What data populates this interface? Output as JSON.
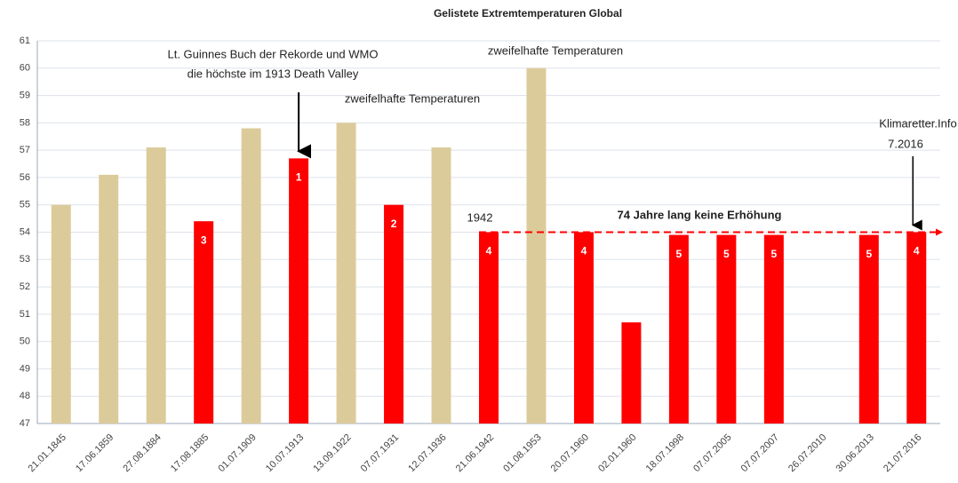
{
  "chart_data": {
    "type": "bar",
    "title": "Gelistete Extremtemperaturen Global",
    "categories": [
      "21.01.1845",
      "17.06.1859",
      "27.08.1884",
      "17.08.1885",
      "01.07.1909",
      "10.07.1913",
      "13.09.1922",
      "07.07.1931",
      "12.07.1936",
      "21.06.1942",
      "01.08.1953",
      "20.07.1960",
      "02.01.1960",
      "18.07.1998",
      "07.07.2005",
      "07.07.2007",
      "26.07.2010",
      "30.06.2013",
      "21.07.2016"
    ],
    "series": [
      {
        "color": "#dccb9a",
        "values": [
          55,
          56.1,
          57.1,
          null,
          57.8,
          null,
          58,
          null,
          57.1,
          null,
          60,
          null,
          null,
          null,
          null,
          null,
          null,
          null,
          null
        ]
      },
      {
        "color": "#ff0000",
        "values": [
          null,
          null,
          null,
          54.4,
          null,
          56.7,
          null,
          55,
          null,
          54,
          null,
          54,
          50.7,
          53.9,
          53.9,
          53.9,
          null,
          53.9,
          54
        ],
        "bar_labels": [
          null,
          null,
          null,
          "3",
          null,
          "1",
          null,
          "2",
          null,
          "4",
          null,
          "4",
          null,
          "5",
          "5",
          "5",
          null,
          "5",
          "4"
        ]
      }
    ],
    "ylim": [
      47,
      61
    ],
    "yticks": [
      47,
      48,
      49,
      50,
      51,
      52,
      53,
      54,
      55,
      56,
      57,
      58,
      59,
      60,
      61
    ],
    "grid": true,
    "reference_line": {
      "value": 54,
      "color": "#ff0000"
    },
    "annotations": [
      "Lt. Guinnes Buch der Rekorde und WMO",
      "die höchste im 1913 Death Valley",
      "zweifelhafte Temperaturen",
      "zweifelhafte Temperaturen",
      "1942",
      "74 Jahre lang keine Erhöhung",
      "Klimaretter.Info",
      "7.2016"
    ]
  }
}
